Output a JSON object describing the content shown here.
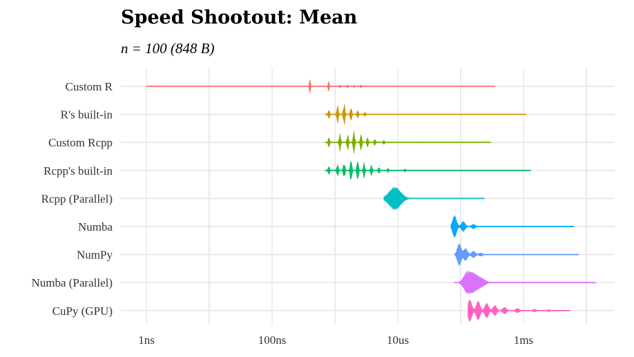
{
  "title": "Speed Shootout: Mean",
  "subtitle": "n = 100 (848 B)",
  "chart_data": {
    "type": "violin",
    "title": "Speed Shootout: Mean",
    "subtitle": "n = 100 (848 B)",
    "xlabel": "",
    "ylabel": "",
    "x_scale": "log10",
    "x_ticks": [
      "1ns",
      "100ns",
      "10us",
      "1ms"
    ],
    "xlim_seconds": [
      1e-09,
      0.1
    ],
    "grid": true,
    "legend": "none",
    "series": [
      {
        "name": "Custom R",
        "color": "#F8766D",
        "min_s": 1e-09,
        "max_s": 0.00035,
        "peaks_s": [
          4e-07,
          8e-07,
          1.2e-06,
          1.6e-06,
          2e-06,
          2.6e-06
        ],
        "peak_h": [
          1.0,
          0.45,
          0.25,
          0.18,
          0.15,
          0.12
        ],
        "spread": 0.008
      },
      {
        "name": "R's built-in",
        "color": "#CD9600",
        "min_s": 7e-07,
        "max_s": 0.0011,
        "peaks_s": [
          8e-07,
          1.1e-06,
          1.4e-06,
          1.8e-06,
          2.3e-06,
          3e-06
        ],
        "peak_h": [
          0.4,
          0.8,
          1.0,
          0.6,
          0.35,
          0.2
        ],
        "spread": 0.012
      },
      {
        "name": "Custom Rcpp",
        "color": "#7CAE00",
        "min_s": 7e-07,
        "max_s": 0.0003,
        "peaks_s": [
          8e-07,
          1.2e-06,
          1.6e-06,
          2e-06,
          2.6e-06,
          3.3e-06,
          4.3e-06,
          6e-06,
          2.5e-05
        ],
        "peak_h": [
          0.45,
          0.8,
          0.7,
          1.0,
          0.75,
          0.45,
          0.3,
          0.2,
          0.05
        ],
        "spread": 0.012
      },
      {
        "name": "Rcpp's built-in",
        "color": "#00BE67",
        "min_s": 7e-07,
        "max_s": 0.0013,
        "peaks_s": [
          8e-07,
          1.1e-06,
          1.4e-06,
          1.8e-06,
          2.3e-06,
          2.9e-06,
          3.8e-06,
          5e-06,
          7e-06,
          1.3e-05
        ],
        "peak_h": [
          0.4,
          0.55,
          0.75,
          1.0,
          0.9,
          0.7,
          0.5,
          0.3,
          0.2,
          0.15
        ],
        "spread": 0.012
      },
      {
        "name": "Rcpp (Parallel)",
        "color": "#00BFC4",
        "min_s": 6e-06,
        "max_s": 0.00024,
        "peaks_s": [
          9e-06
        ],
        "peak_h": [
          1.0
        ],
        "spread": 0.09
      },
      {
        "name": "Numba",
        "color": "#00A9FF",
        "min_s": 7e-05,
        "max_s": 0.0063,
        "peaks_s": [
          8e-05,
          0.00011,
          0.00016
        ],
        "peak_h": [
          1.0,
          0.45,
          0.2
        ],
        "spread": 0.03
      },
      {
        "name": "NumPy",
        "color": "#619CFF",
        "min_s": 8e-05,
        "max_s": 0.0075,
        "peaks_s": [
          9.5e-05,
          0.00012,
          0.00016,
          0.00021
        ],
        "peak_h": [
          1.0,
          0.55,
          0.3,
          0.15
        ],
        "spread": 0.03
      },
      {
        "name": "Numba (Parallel)",
        "color": "#DB72FB",
        "min_s": 8e-05,
        "max_s": 0.014,
        "peaks_s": [
          0.00013,
          0.00017,
          0.00022
        ],
        "peak_h": [
          1.0,
          0.6,
          0.3
        ],
        "spread": 0.06
      },
      {
        "name": "CuPy (GPU)",
        "color": "#FF61C3",
        "min_s": 0.00013,
        "max_s": 0.0055,
        "peaks_s": [
          0.00014,
          0.00019,
          0.00026,
          0.00035,
          0.0005,
          0.0008,
          0.0015,
          0.0025,
          0.004
        ],
        "peak_h": [
          1.0,
          0.85,
          0.65,
          0.45,
          0.3,
          0.2,
          0.12,
          0.09,
          0.05
        ],
        "spread": 0.03
      }
    ]
  }
}
